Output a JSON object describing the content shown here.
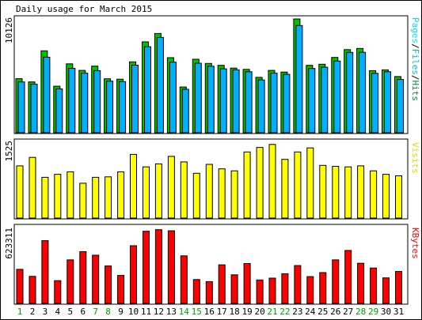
{
  "chart_data": {
    "type": "bar",
    "title": "Daily usage for March 2015",
    "days": [
      "1",
      "2",
      "3",
      "4",
      "5",
      "6",
      "7",
      "8",
      "9",
      "10",
      "11",
      "12",
      "13",
      "14",
      "15",
      "16",
      "17",
      "18",
      "19",
      "20",
      "21",
      "22",
      "23",
      "24",
      "25",
      "26",
      "27",
      "28",
      "29",
      "30",
      "31"
    ],
    "weekend_days": [
      "1",
      "7",
      "8",
      "14",
      "15",
      "21",
      "22",
      "28",
      "29"
    ],
    "panels": [
      {
        "name": "hits-pages-files",
        "max_label": "10126",
        "side_label": [
          "Pages",
          "/",
          "Files",
          "/",
          "Hits"
        ],
        "side_label_colors": [
          "#00e0ff",
          "#000000",
          "#00b0ff",
          "#000000",
          "#009040"
        ],
        "series": [
          {
            "name": "Hits",
            "color": "#00c000",
            "values": [
              4810,
              4520,
              7290,
              4140,
              6130,
              5550,
              5930,
              4800,
              4770,
              6310,
              8090,
              8830,
              6680,
              4070,
              6540,
              6170,
              6000,
              5750,
              5640,
              4930,
              5550,
              5400,
              10126,
              6000,
              6100,
              6700,
              7400,
              7500,
              5530,
              5600,
              5000
            ]
          },
          {
            "name": "Files",
            "color": "#00b0ff",
            "values": [
              4520,
              4320,
              6720,
              3900,
              5730,
              5300,
              5530,
              4590,
              4550,
              6010,
              7650,
              8480,
              6280,
              3870,
              6190,
              5920,
              5690,
              5600,
              5430,
              4700,
              5300,
              5200,
              9540,
              5720,
              5830,
              6380,
              7150,
              7160,
              5290,
              5430,
              4740
            ]
          }
        ],
        "max": 10126
      },
      {
        "name": "visits",
        "max_label": "1525",
        "side_label": [
          "Visits"
        ],
        "side_label_colors": [
          "#e0e000"
        ],
        "series": [
          {
            "name": "Visits",
            "color": "#ffff00",
            "values": [
              1050,
              1220,
              820,
              880,
              930,
              700,
              820,
              830,
              930,
              1280,
              1030,
              1090,
              1240,
              1130,
              900,
              1080,
              990,
              950,
              1330,
              1420,
              1480,
              1180,
              1330,
              1410,
              1060,
              1040,
              1030,
              1050,
              950,
              880,
              850
            ]
          }
        ],
        "max": 1525
      },
      {
        "name": "kbytes",
        "max_label": "623311",
        "side_label": [
          "KBytes"
        ],
        "side_label_colors": [
          "#ff0000"
        ],
        "series": [
          {
            "name": "KBytes",
            "color": "#ff0000",
            "values": [
              280000,
              222000,
              516000,
              187000,
              358000,
              425000,
              396000,
              308000,
              230000,
              474000,
              593000,
              606000,
              597000,
              391000,
              196000,
              179000,
              317000,
              235000,
              328000,
              193000,
              208000,
              244000,
              311000,
              220000,
              253000,
              358000,
              435000,
              330000,
              291000,
              210000,
              262000
            ]
          }
        ],
        "max": 623311
      }
    ]
  }
}
